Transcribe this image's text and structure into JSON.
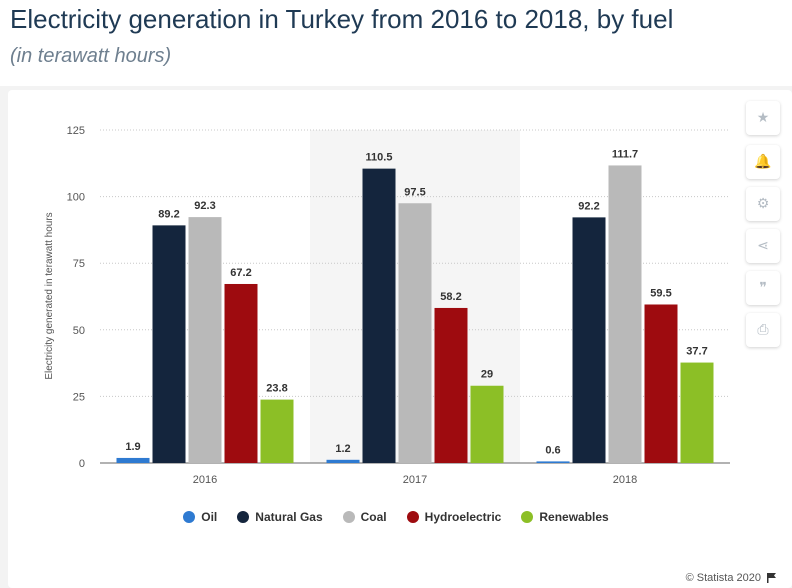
{
  "header": {
    "title": "Electricity generation in Turkey from 2016 to 2018, by fuel",
    "subtitle": "(in terawatt hours)"
  },
  "toolbar": {
    "buttons": [
      {
        "name": "favorite",
        "icon": "star-icon",
        "glyph": "★"
      },
      {
        "name": "notification",
        "icon": "bell-icon",
        "glyph": "🔔"
      },
      {
        "name": "settings",
        "icon": "gear-icon",
        "glyph": "⚙"
      },
      {
        "name": "share",
        "icon": "share-icon",
        "glyph": "⋖"
      },
      {
        "name": "cite",
        "icon": "quote-icon",
        "glyph": "❞"
      },
      {
        "name": "print",
        "icon": "print-icon",
        "glyph": "⎙"
      }
    ]
  },
  "chart_data": {
    "type": "bar",
    "title": "Electricity generation in Turkey from 2016 to 2018, by fuel",
    "subtitle": "(in terawatt hours)",
    "xlabel": "",
    "ylabel": "Electricity generated in terawatt hours",
    "ylim": [
      0,
      125
    ],
    "yticks": [
      0,
      25,
      50,
      75,
      100,
      125
    ],
    "grid": true,
    "legend_position": "bottom",
    "highlighted_category": "2017",
    "categories": [
      "2016",
      "2017",
      "2018"
    ],
    "series": [
      {
        "name": "Oil",
        "color": "#2e7ad1",
        "values": [
          1.9,
          1.2,
          0.6
        ]
      },
      {
        "name": "Natural Gas",
        "color": "#14253d",
        "values": [
          89.2,
          110.5,
          92.2
        ]
      },
      {
        "name": "Coal",
        "color": "#b9b9b9",
        "values": [
          92.3,
          97.5,
          111.7
        ]
      },
      {
        "name": "Hydroelectric",
        "color": "#9e0b0f",
        "values": [
          67.2,
          58.2,
          59.5
        ]
      },
      {
        "name": "Renewables",
        "color": "#8cbf26",
        "values": [
          23.8,
          29,
          37.7
        ]
      }
    ],
    "data_labels": [
      [
        "1.9",
        "89.2",
        "92.3",
        "67.2",
        "23.8"
      ],
      [
        "1.2",
        "110.5",
        "97.5",
        "58.2",
        "29"
      ],
      [
        "0.6",
        "92.2",
        "111.7",
        "59.5",
        "37.7"
      ]
    ]
  },
  "footer": {
    "copyright": "© Statista 2020"
  }
}
